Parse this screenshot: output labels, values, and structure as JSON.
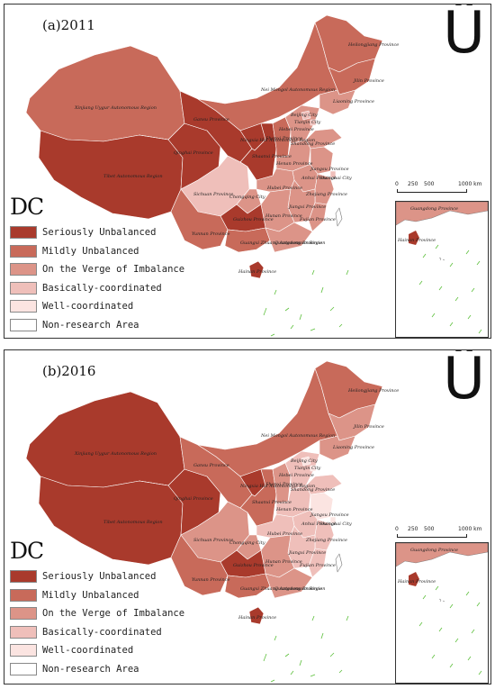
{
  "panels": [
    {
      "label": "(a)2011",
      "north_symbol": "Ü",
      "legend_title": "DC",
      "legend_items": [
        {
          "label": "Seriously Unbalanced",
          "color": "#a93a2c"
        },
        {
          "label": "Mildly Unbalanced",
          "color": "#c86a5a"
        },
        {
          "label": "On the Verge of Imbalance",
          "color": "#dc9488"
        },
        {
          "label": "Basically-coordinated",
          "color": "#efbfba"
        },
        {
          "label": "Well-coordinated",
          "color": "#fbe4e1"
        },
        {
          "label": "Non-research Area",
          "color": "#ffffff"
        }
      ],
      "scale": {
        "ticks": [
          "0",
          "250",
          "500",
          "1000 km"
        ]
      },
      "inset_label": "Guangdong Province",
      "inset_hainan": "Hainan Province"
    },
    {
      "label": "(b)2016",
      "north_symbol": "Ü",
      "legend_title": "DC",
      "legend_items": [
        {
          "label": "Seriously Unbalanced",
          "color": "#a93a2c"
        },
        {
          "label": "Mildly Unbalanced",
          "color": "#c86a5a"
        },
        {
          "label": "On the Verge of Imbalance",
          "color": "#dc9488"
        },
        {
          "label": "Basically-coordinated",
          "color": "#efbfba"
        },
        {
          "label": "Well-coordinated",
          "color": "#fbe4e1"
        },
        {
          "label": "Non-research Area",
          "color": "#ffffff"
        }
      ],
      "scale": {
        "ticks": [
          "0",
          "250",
          "500",
          "1000 km"
        ]
      },
      "inset_label": "Guangdong Province",
      "inset_hainan": "Hainan Province"
    }
  ],
  "provinces_2011": [
    {
      "name": "Xinjiang Uygur Autonomous Region",
      "class": "Mildly Unbalanced"
    },
    {
      "name": "Tibet Autonomous Region",
      "class": "Seriously Unbalanced"
    },
    {
      "name": "Qinghai Province",
      "class": "Seriously Unbalanced"
    },
    {
      "name": "Gansu Province",
      "class": "Seriously Unbalanced"
    },
    {
      "name": "Nei Mongol Autonomous Region",
      "class": "Mildly Unbalanced"
    },
    {
      "name": "Heilongjiang Province",
      "class": "Mildly Unbalanced"
    },
    {
      "name": "Jilin Province",
      "class": "Mildly Unbalanced"
    },
    {
      "name": "Liaoning Province",
      "class": "On the Verge of Imbalance"
    },
    {
      "name": "Ningxia Hui Autonomous Region",
      "class": "Seriously Unbalanced"
    },
    {
      "name": "Shaanxi Province",
      "class": "Seriously Unbalanced"
    },
    {
      "name": "Shanxi Province",
      "class": "Mildly Unbalanced"
    },
    {
      "name": "Hebei Province",
      "class": "On the Verge of Imbalance"
    },
    {
      "name": "Beijing City",
      "class": "Basically-coordinated"
    },
    {
      "name": "Tianjin City",
      "class": "Basically-coordinated"
    },
    {
      "name": "Shandong Province",
      "class": "On the Verge of Imbalance"
    },
    {
      "name": "Henan Province",
      "class": "On the Verge of Imbalance"
    },
    {
      "name": "Jiangsu Province",
      "class": "On the Verge of Imbalance"
    },
    {
      "name": "Anhui Province",
      "class": "On the Verge of Imbalance"
    },
    {
      "name": "Shanghai City",
      "class": "Basically-coordinated"
    },
    {
      "name": "Hubei Province",
      "class": "On the Verge of Imbalance"
    },
    {
      "name": "Zhejiang Province",
      "class": "On the Verge of Imbalance"
    },
    {
      "name": "Sichuan Province",
      "class": "Basically-coordinated"
    },
    {
      "name": "Chongqing City",
      "class": "On the Verge of Imbalance"
    },
    {
      "name": "Jiangxi Province",
      "class": "On the Verge of Imbalance"
    },
    {
      "name": "Fujian Province",
      "class": "On the Verge of Imbalance"
    },
    {
      "name": "Hunan Province",
      "class": "On the Verge of Imbalance"
    },
    {
      "name": "Guizhou Province",
      "class": "Seriously Unbalanced"
    },
    {
      "name": "Yunnan Province",
      "class": "Mildly Unbalanced"
    },
    {
      "name": "Guangxi Zhuang Autonomous Region",
      "class": "Mildly Unbalanced"
    },
    {
      "name": "Guangdong Province",
      "class": "On the Verge of Imbalance"
    },
    {
      "name": "Hainan Province",
      "class": "Seriously Unbalanced"
    }
  ],
  "provinces_2016": [
    {
      "name": "Xinjiang Uygur Autonomous Region",
      "class": "Seriously Unbalanced"
    },
    {
      "name": "Tibet Autonomous Region",
      "class": "Seriously Unbalanced"
    },
    {
      "name": "Qinghai Province",
      "class": "Seriously Unbalanced"
    },
    {
      "name": "Gansu Province",
      "class": "Mildly Unbalanced"
    },
    {
      "name": "Nei Mongol Autonomous Region",
      "class": "Mildly Unbalanced"
    },
    {
      "name": "Heilongjiang Province",
      "class": "Mildly Unbalanced"
    },
    {
      "name": "Jilin Province",
      "class": "On the Verge of Imbalance"
    },
    {
      "name": "Liaoning Province",
      "class": "On the Verge of Imbalance"
    },
    {
      "name": "Ningxia Hui Autonomous Region",
      "class": "Seriously Unbalanced"
    },
    {
      "name": "Shaanxi Province",
      "class": "Mildly Unbalanced"
    },
    {
      "name": "Shanxi Province",
      "class": "On the Verge of Imbalance"
    },
    {
      "name": "Hebei Province",
      "class": "Basically-coordinated"
    },
    {
      "name": "Beijing City",
      "class": "Well-coordinated"
    },
    {
      "name": "Tianjin City",
      "class": "Well-coordinated"
    },
    {
      "name": "Shandong Province",
      "class": "Basically-coordinated"
    },
    {
      "name": "Henan Province",
      "class": "Basically-coordinated"
    },
    {
      "name": "Jiangsu Province",
      "class": "Well-coordinated"
    },
    {
      "name": "Anhui Province",
      "class": "Basically-coordinated"
    },
    {
      "name": "Shanghai City",
      "class": "Well-coordinated"
    },
    {
      "name": "Hubei Province",
      "class": "Basically-coordinated"
    },
    {
      "name": "Zhejiang Province",
      "class": "Basically-coordinated"
    },
    {
      "name": "Sichuan Province",
      "class": "On the Verge of Imbalance"
    },
    {
      "name": "Chongqing City",
      "class": "On the Verge of Imbalance"
    },
    {
      "name": "Jiangxi Province",
      "class": "Basically-coordinated"
    },
    {
      "name": "Fujian Province",
      "class": "Basically-coordinated"
    },
    {
      "name": "Hunan Province",
      "class": "On the Verge of Imbalance"
    },
    {
      "name": "Guizhou Province",
      "class": "Seriously Unbalanced"
    },
    {
      "name": "Yunnan Province",
      "class": "Mildly Unbalanced"
    },
    {
      "name": "Guangxi Zhuang Autonomous Region",
      "class": "Mildly Unbalanced"
    },
    {
      "name": "Guangdong Province",
      "class": "On the Verge of Imbalance"
    },
    {
      "name": "Hainan Province",
      "class": "Seriously Unbalanced"
    }
  ]
}
